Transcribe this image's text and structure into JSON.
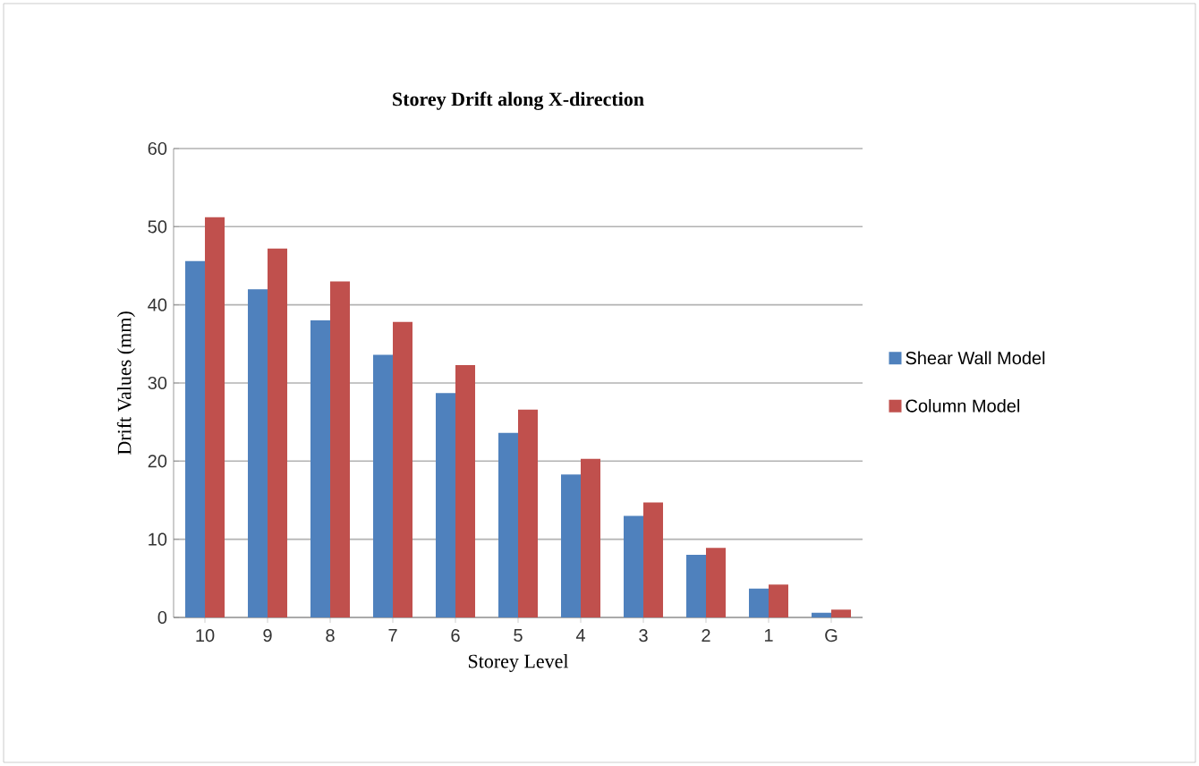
{
  "chart_data": {
    "type": "bar",
    "title": "Storey Drift along X-direction",
    "xlabel": "Storey Level",
    "ylabel": "Drift Values (mm)",
    "categories": [
      "10",
      "9",
      "8",
      "7",
      "6",
      "5",
      "4",
      "3",
      "2",
      "1",
      "G"
    ],
    "series": [
      {
        "name": "Shear Wall Model",
        "color": "#4f81bd",
        "values": [
          45.6,
          42.0,
          38.0,
          33.6,
          28.7,
          23.6,
          18.3,
          13.0,
          8.0,
          3.7,
          0.6
        ]
      },
      {
        "name": "Column Model",
        "color": "#c0504d",
        "values": [
          51.2,
          47.2,
          43.0,
          37.8,
          32.3,
          26.6,
          20.3,
          14.7,
          8.9,
          4.2,
          1.0
        ]
      }
    ],
    "ylim": [
      0,
      60
    ],
    "yticks": [
      0,
      10,
      20,
      30,
      40,
      50,
      60
    ],
    "grid": "y",
    "legend": "right"
  }
}
